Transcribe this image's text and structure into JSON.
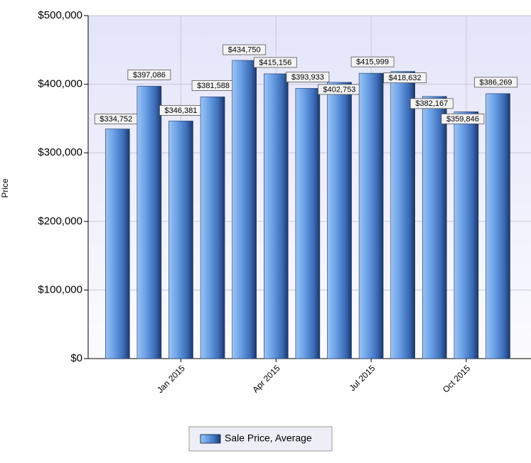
{
  "chart_data": {
    "type": "bar",
    "y_label": "Price",
    "categories": [
      null,
      null,
      "Jan 2015",
      null,
      null,
      "Apr 2015",
      null,
      null,
      "Jul 2015",
      null,
      null,
      "Oct 2015",
      null
    ],
    "series": [
      {
        "name": "Sale Price, Average",
        "color": "#4a86d8",
        "values": [
          334752,
          397086,
          346381,
          381588,
          434750,
          415156,
          393933,
          402753,
          415999,
          418632,
          382167,
          359846,
          386269
        ],
        "value_labels": [
          "$334,752",
          "$397,086",
          "$346,381",
          "$381,588",
          "$434,750",
          "$415,156",
          "$393,933",
          "$402,753",
          "$415,999",
          "$418,632",
          "$382,167",
          "$359,846",
          "$386,269"
        ]
      }
    ],
    "ylim": [
      0,
      500000
    ],
    "yticks": [
      {
        "value": 0,
        "label": "$0"
      },
      {
        "value": 100000,
        "label": "$100,000"
      },
      {
        "value": 200000,
        "label": "$200,000"
      },
      {
        "value": 300000,
        "label": "$300,000"
      },
      {
        "value": 400000,
        "label": "$400,000"
      },
      {
        "value": 500000,
        "label": "$500,000"
      }
    ],
    "grid": true,
    "legend": "bottom"
  }
}
